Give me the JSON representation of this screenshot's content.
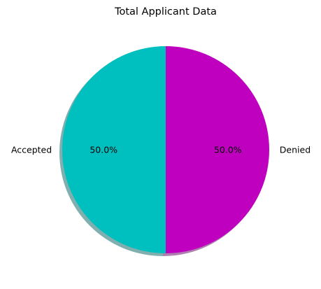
{
  "chart_data": {
    "type": "pie",
    "title": "Total Applicant Data",
    "labels": [
      "Accepted",
      "Denied"
    ],
    "values": [
      50.0,
      50.0
    ],
    "percent_labels": [
      "50.0%",
      "50.0%"
    ],
    "colors": [
      "#00bfbf",
      "#bf00bf"
    ],
    "shadow": true,
    "start_angle_deg": 90,
    "direction": "counterclockwise"
  }
}
